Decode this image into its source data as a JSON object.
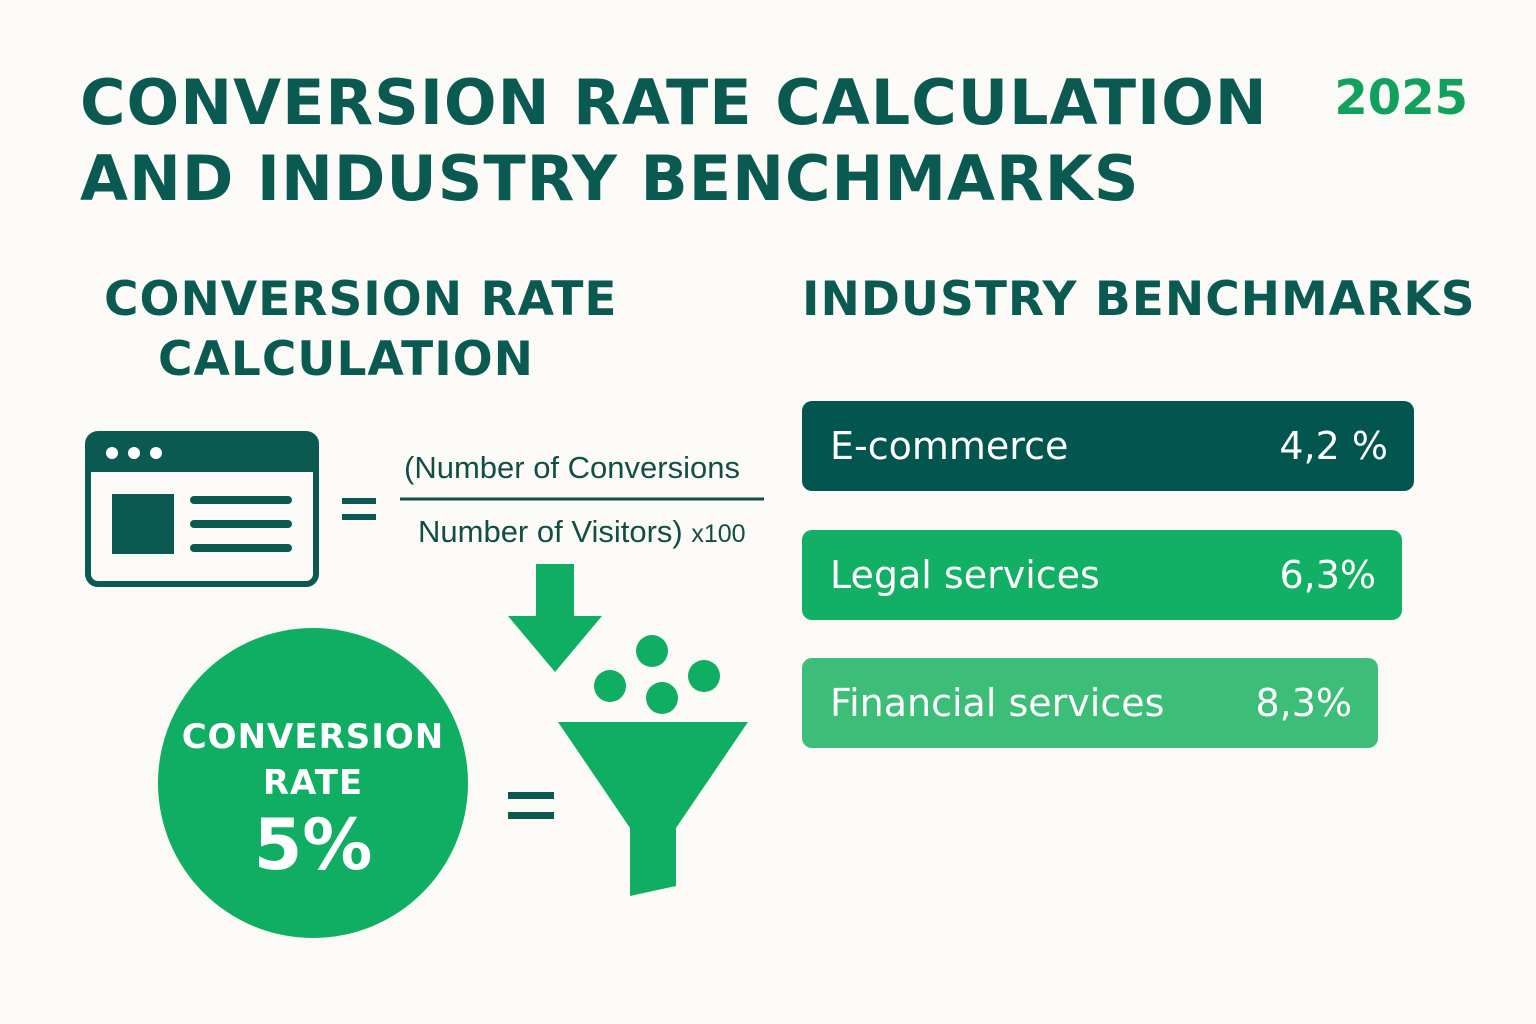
{
  "header": {
    "title_line_1": "CONVERSION RATE CALCULATION",
    "title_line_2": "AND INDUSTRY BENCHMARKS",
    "year": "2025"
  },
  "calculation": {
    "heading_line_1": "CONVERSION RATE",
    "heading_line_2": "CALCULATION",
    "formula_numerator": "(Number of Conversions",
    "formula_denominator": "Number of Visitors)",
    "formula_multiplier": "x100",
    "result": {
      "label_line_1": "CONVERSION",
      "label_line_2": "RATE",
      "value": "5%"
    }
  },
  "benchmarks": {
    "heading": "INDUSTRY BENCHMARKS",
    "items": [
      {
        "label": "E-commerce",
        "value": "4,2 %",
        "color": "#03564f"
      },
      {
        "label": "Legal services",
        "value": "6,3%",
        "color": "#11b064"
      },
      {
        "label": "Financial services",
        "value": "8,3%",
        "color": "#3cbe79"
      }
    ]
  },
  "colors": {
    "dark_teal": "#0b5a52",
    "green": "#0fae63",
    "light_green": "#3cbe79",
    "background": "#fbfaf6"
  },
  "icons": [
    "browser-window-icon",
    "equals-icon",
    "down-arrow-icon",
    "funnel-icon"
  ]
}
